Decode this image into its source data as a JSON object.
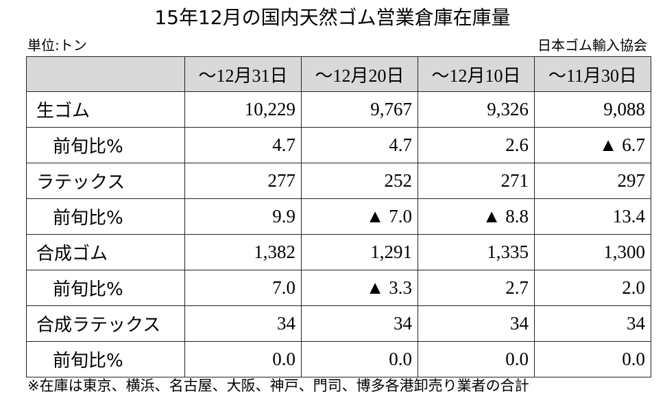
{
  "header": {
    "title": "15年12月の国内天然ゴム営業倉庫在庫量",
    "unit": "単位:トン",
    "source": "日本ゴム輸入協会"
  },
  "table": {
    "columns": [
      "～12月31日",
      "～12月20日",
      "～12月10日",
      "～11月30日"
    ],
    "rows": [
      {
        "label": "生ゴム",
        "indent": false,
        "values": [
          "10,229",
          "9,767",
          "9,326",
          "9,088"
        ]
      },
      {
        "label": "前旬比%",
        "indent": true,
        "values": [
          "4.7",
          "4.7",
          "2.6",
          "▲ 6.7"
        ]
      },
      {
        "label": "ラテックス",
        "indent": false,
        "values": [
          "277",
          "252",
          "271",
          "297"
        ]
      },
      {
        "label": "前旬比%",
        "indent": true,
        "values": [
          "9.9",
          "▲ 7.0",
          "▲ 8.8",
          "13.4"
        ]
      },
      {
        "label": "合成ゴム",
        "indent": false,
        "values": [
          "1,382",
          "1,291",
          "1,335",
          "1,300"
        ]
      },
      {
        "label": "前旬比%",
        "indent": true,
        "values": [
          "7.0",
          "▲ 3.3",
          "2.7",
          "2.0"
        ]
      },
      {
        "label": "合成ラテックス",
        "indent": false,
        "values": [
          "34",
          "34",
          "34",
          "34"
        ]
      },
      {
        "label": "前旬比%",
        "indent": true,
        "values": [
          "0.0",
          "0.0",
          "0.0",
          "0.0"
        ]
      }
    ]
  },
  "footnote": "※在庫は東京、横浜、名古屋、大阪、神戸、門司、博多各港卸売り業者の合計"
}
